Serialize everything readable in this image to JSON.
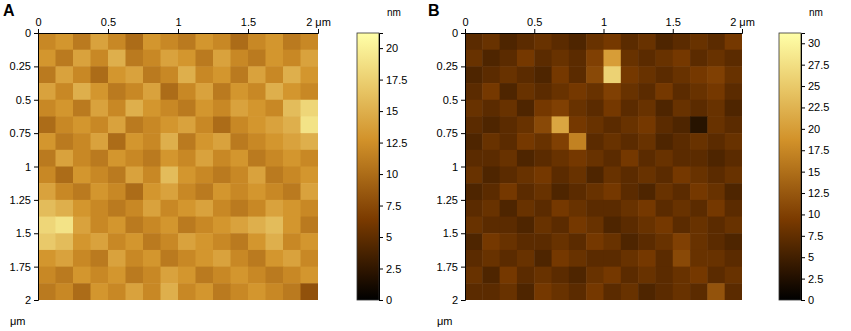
{
  "chart_data": [
    {
      "type": "heatmap",
      "title": "A",
      "ylabel": "μm",
      "xlim": [
        0,
        2
      ],
      "ylim": [
        0,
        2
      ],
      "xticks": [
        0,
        0.5,
        1,
        1.5,
        {
          "value": 2,
          "label": "2 μm"
        }
      ],
      "yticks": [
        0,
        0.25,
        0.5,
        0.75,
        1,
        1.25,
        1.5,
        1.75,
        2
      ],
      "color_label": "nm",
      "color_range": [
        0,
        21.2
      ],
      "color_ticks": [
        0,
        2.5,
        5,
        7.5,
        10,
        12.5,
        15,
        17.5,
        20
      ],
      "cells": [
        [
          12,
          13,
          11,
          14,
          12,
          10,
          13,
          12,
          11,
          13,
          12,
          10,
          12,
          13,
          11,
          12
        ],
        [
          13,
          11,
          14,
          12,
          15,
          11,
          12,
          14,
          13,
          11,
          14,
          12,
          11,
          13,
          12,
          14
        ],
        [
          11,
          14,
          12,
          10,
          13,
          14,
          11,
          12,
          15,
          12,
          13,
          11,
          14,
          12,
          15,
          13
        ],
        [
          14,
          12,
          15,
          13,
          11,
          12,
          14,
          10,
          12,
          14,
          11,
          13,
          12,
          15,
          13,
          12
        ],
        [
          12,
          13,
          11,
          14,
          12,
          15,
          13,
          12,
          11,
          13,
          12,
          14,
          13,
          12,
          16,
          18
        ],
        [
          10,
          12,
          13,
          12,
          14,
          11,
          12,
          13,
          14,
          12,
          10,
          12,
          13,
          14,
          15,
          19
        ],
        [
          13,
          11,
          12,
          14,
          10,
          13,
          12,
          15,
          11,
          13,
          14,
          11,
          12,
          13,
          14,
          15
        ],
        [
          11,
          14,
          12,
          11,
          13,
          12,
          11,
          13,
          12,
          14,
          12,
          13,
          11,
          12,
          13,
          12
        ],
        [
          12,
          10,
          13,
          12,
          11,
          14,
          12,
          16,
          13,
          12,
          11,
          12,
          14,
          11,
          12,
          13
        ],
        [
          14,
          12,
          11,
          13,
          12,
          10,
          13,
          14,
          12,
          11,
          13,
          12,
          13,
          12,
          11,
          14
        ],
        [
          16,
          15,
          13,
          12,
          11,
          12,
          14,
          12,
          13,
          14,
          12,
          11,
          12,
          14,
          13,
          12
        ],
        [
          18,
          19,
          14,
          12,
          13,
          11,
          12,
          13,
          11,
          12,
          13,
          14,
          15,
          16,
          13,
          11
        ],
        [
          17,
          16,
          13,
          14,
          12,
          13,
          11,
          12,
          14,
          13,
          12,
          11,
          13,
          15,
          12,
          13
        ],
        [
          13,
          14,
          12,
          11,
          14,
          12,
          13,
          11,
          12,
          13,
          14,
          12,
          11,
          13,
          14,
          12
        ],
        [
          12,
          11,
          13,
          12,
          13,
          11,
          12,
          14,
          13,
          11,
          12,
          13,
          12,
          11,
          12,
          13
        ],
        [
          11,
          12,
          10,
          13,
          12,
          14,
          12,
          15,
          12,
          13,
          11,
          12,
          13,
          12,
          11,
          8
        ]
      ]
    },
    {
      "type": "heatmap",
      "title": "B",
      "ylabel": "μm",
      "xlim": [
        0,
        2
      ],
      "ylim": [
        0,
        2
      ],
      "xticks": [
        0,
        0.5,
        1,
        1.5,
        {
          "value": 2,
          "label": "2 μm"
        }
      ],
      "yticks": [
        0,
        0.25,
        0.5,
        0.75,
        1,
        1.25,
        1.5,
        1.75,
        2
      ],
      "color_label": "nm",
      "color_range": [
        0,
        31.2
      ],
      "color_ticks": [
        0,
        2.5,
        5,
        7.5,
        10,
        12.5,
        15,
        17.5,
        20,
        22.5,
        25,
        27.5,
        30
      ],
      "cells": [
        [
          7,
          8,
          6,
          7,
          8,
          7,
          6,
          8,
          9,
          7,
          8,
          6,
          7,
          8,
          7,
          9
        ],
        [
          8,
          6,
          7,
          9,
          7,
          8,
          7,
          10,
          20,
          8,
          7,
          8,
          9,
          7,
          8,
          7
        ],
        [
          6,
          7,
          8,
          7,
          6,
          9,
          7,
          11,
          26,
          9,
          8,
          7,
          8,
          9,
          10,
          8
        ],
        [
          7,
          9,
          6,
          8,
          7,
          8,
          9,
          8,
          10,
          8,
          7,
          9,
          7,
          8,
          9,
          7
        ],
        [
          8,
          7,
          8,
          6,
          9,
          10,
          8,
          7,
          9,
          7,
          8,
          6,
          8,
          7,
          8,
          6
        ],
        [
          7,
          6,
          7,
          8,
          11,
          21,
          9,
          8,
          7,
          8,
          9,
          7,
          6,
          3,
          8,
          7
        ],
        [
          6,
          8,
          7,
          9,
          8,
          10,
          17,
          7,
          8,
          7,
          8,
          6,
          7,
          8,
          7,
          8
        ],
        [
          7,
          7,
          8,
          6,
          7,
          8,
          9,
          8,
          7,
          9,
          7,
          8,
          7,
          7,
          6,
          7
        ],
        [
          8,
          6,
          7,
          8,
          9,
          7,
          8,
          6,
          8,
          7,
          8,
          7,
          9,
          8,
          7,
          8
        ],
        [
          6,
          7,
          9,
          7,
          8,
          6,
          7,
          8,
          9,
          7,
          6,
          8,
          7,
          9,
          8,
          6
        ],
        [
          7,
          8,
          6,
          8,
          7,
          9,
          8,
          7,
          7,
          8,
          9,
          7,
          8,
          7,
          9,
          7
        ],
        [
          8,
          7,
          7,
          6,
          8,
          7,
          9,
          8,
          6,
          7,
          8,
          9,
          7,
          8,
          7,
          8
        ],
        [
          6,
          9,
          8,
          7,
          7,
          8,
          7,
          9,
          8,
          6,
          7,
          8,
          10,
          8,
          7,
          6
        ],
        [
          7,
          8,
          7,
          8,
          6,
          9,
          8,
          7,
          7,
          8,
          9,
          7,
          11,
          8,
          8,
          7
        ],
        [
          8,
          6,
          9,
          7,
          8,
          7,
          6,
          8,
          9,
          7,
          8,
          7,
          8,
          9,
          7,
          8
        ],
        [
          7,
          7,
          8,
          6,
          9,
          8,
          7,
          9,
          7,
          8,
          6,
          7,
          8,
          7,
          12,
          7
        ]
      ]
    }
  ]
}
